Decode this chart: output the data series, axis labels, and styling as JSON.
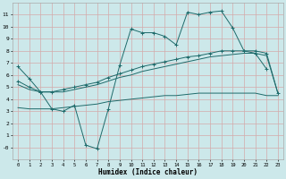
{
  "xlabel": "Humidex (Indice chaleur)",
  "xlim": [
    -0.5,
    23.5
  ],
  "ylim": [
    -1,
    12
  ],
  "xticks": [
    0,
    1,
    2,
    3,
    4,
    5,
    6,
    7,
    8,
    9,
    10,
    11,
    12,
    13,
    14,
    15,
    16,
    17,
    18,
    19,
    20,
    21,
    22,
    23
  ],
  "yticks": [
    0,
    1,
    2,
    3,
    4,
    5,
    6,
    7,
    8,
    9,
    10,
    11
  ],
  "bg_color": "#cce8ea",
  "line_color": "#1e6b6b",
  "grid_color": "#d4aaaa",
  "lines": [
    {
      "x": [
        0,
        1,
        2,
        3,
        4,
        5,
        6,
        7,
        8,
        9,
        10,
        11,
        12,
        13,
        14,
        15,
        16,
        17,
        18,
        19,
        20,
        21,
        22
      ],
      "y": [
        6.7,
        5.7,
        4.6,
        3.2,
        3.0,
        3.5,
        0.2,
        -0.1,
        3.2,
        6.8,
        9.8,
        9.5,
        9.5,
        9.2,
        8.5,
        11.2,
        11.0,
        11.2,
        11.3,
        9.9,
        8.0,
        7.8,
        6.5
      ],
      "marker": "+"
    },
    {
      "x": [
        0,
        1,
        2,
        3,
        4,
        5,
        6,
        7,
        8,
        9,
        10,
        11,
        12,
        13,
        14,
        15,
        16,
        17,
        18,
        19,
        20,
        21,
        22,
        23
      ],
      "y": [
        5.5,
        5.0,
        4.6,
        4.6,
        4.8,
        5.0,
        5.2,
        5.4,
        5.8,
        6.1,
        6.4,
        6.7,
        6.9,
        7.1,
        7.3,
        7.5,
        7.6,
        7.8,
        8.0,
        8.0,
        8.0,
        8.0,
        7.8,
        4.5
      ],
      "marker": "+"
    },
    {
      "x": [
        0,
        1,
        2,
        3,
        4,
        5,
        6,
        7,
        8,
        9,
        10,
        11,
        12,
        13,
        14,
        15,
        16,
        17,
        18,
        19,
        20,
        21,
        22,
        23
      ],
      "y": [
        5.2,
        4.8,
        4.6,
        4.6,
        4.6,
        4.8,
        5.0,
        5.2,
        5.5,
        5.8,
        6.0,
        6.3,
        6.5,
        6.7,
        6.9,
        7.1,
        7.3,
        7.5,
        7.6,
        7.7,
        7.8,
        7.8,
        7.6,
        4.5
      ],
      "marker": null
    },
    {
      "x": [
        0,
        1,
        2,
        3,
        4,
        5,
        6,
        7,
        8,
        9,
        10,
        11,
        12,
        13,
        14,
        15,
        16,
        17,
        18,
        19,
        20,
        21,
        22,
        23
      ],
      "y": [
        3.3,
        3.2,
        3.2,
        3.2,
        3.3,
        3.4,
        3.5,
        3.6,
        3.8,
        3.9,
        4.0,
        4.1,
        4.2,
        4.3,
        4.3,
        4.4,
        4.5,
        4.5,
        4.5,
        4.5,
        4.5,
        4.5,
        4.3,
        4.3
      ],
      "marker": null
    }
  ]
}
